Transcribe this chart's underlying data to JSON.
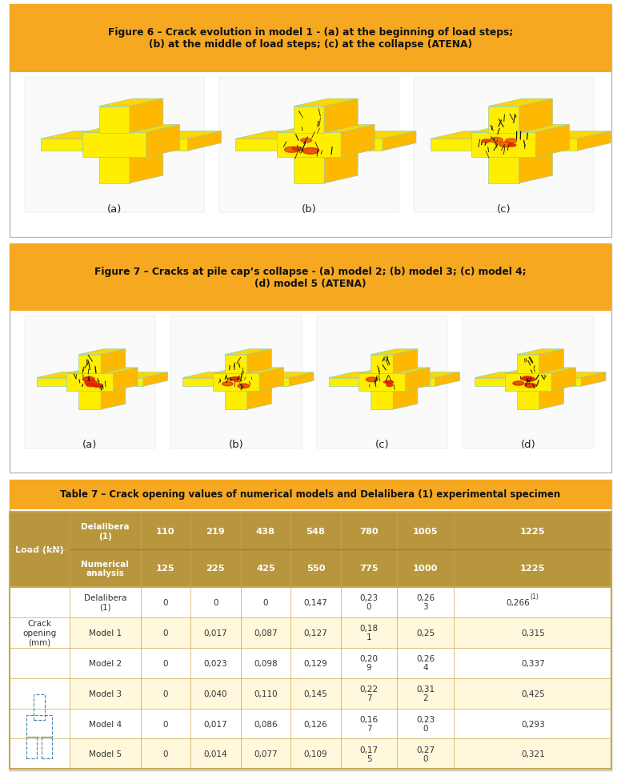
{
  "fig6_title": "Figure 6 – Crack evolution in model 1 - (a) at the beginning of load steps;\n(b) at the middle of load steps; (c) at the collapse (ATENA)",
  "fig7_title": "Figure 7 – Cracks at pile cap’s collapse - (a) model 2; (b) model 3; (c) model 4;\n(d) model 5 (ATENA)",
  "fig6_labels": [
    "(a)",
    "(b)",
    "(c)"
  ],
  "fig7_labels": [
    "(a)",
    "(b)",
    "(c)",
    "(d)"
  ],
  "table_title": "Table 7 – Crack opening values of numerical models and Delalibera (1) experimental specimen",
  "header_bg": "#B8963E",
  "figure_header_bg": "#F5A820",
  "row_alt_bg": "#FFF8DC",
  "row_white_bg": "#FFFFFF",
  "load_kN_col_header": "Load (kN)",
  "col1_header_row1": "Delalibera\n(1)",
  "col1_header_row2": "Numerical\nanalysis",
  "load_values_row1": [
    "110",
    "219",
    "438",
    "548",
    "780",
    "1005",
    "1225"
  ],
  "load_values_row2": [
    "125",
    "225",
    "425",
    "550",
    "775",
    "1000",
    "1225"
  ],
  "row_labels": [
    "Delalibera\n(1)",
    "Model 1",
    "Model 2",
    "Model 3",
    "Model 4",
    "Model 5"
  ],
  "table_data": [
    [
      "0",
      "0",
      "0",
      "0,147",
      "0,23\n0",
      "0,26\n3",
      "0,266(1)"
    ],
    [
      "0",
      "0,017",
      "0,087",
      "0,127",
      "0,18\n1",
      "0,25",
      "0,315"
    ],
    [
      "0",
      "0,023",
      "0,098",
      "0,129",
      "0,20\n9",
      "0,26\n4",
      "0,337"
    ],
    [
      "0",
      "0,040",
      "0,110",
      "0,145",
      "0,22\n7",
      "0,31\n2",
      "0,425"
    ],
    [
      "0",
      "0,017",
      "0,086",
      "0,126",
      "0,16\n7",
      "0,23\n0",
      "0,293"
    ],
    [
      "0",
      "0,014",
      "0,077",
      "0,109",
      "0,17\n5",
      "0,27\n0",
      "0,321"
    ]
  ],
  "crack_opening_label": "Crack\nopening\n(mm)"
}
